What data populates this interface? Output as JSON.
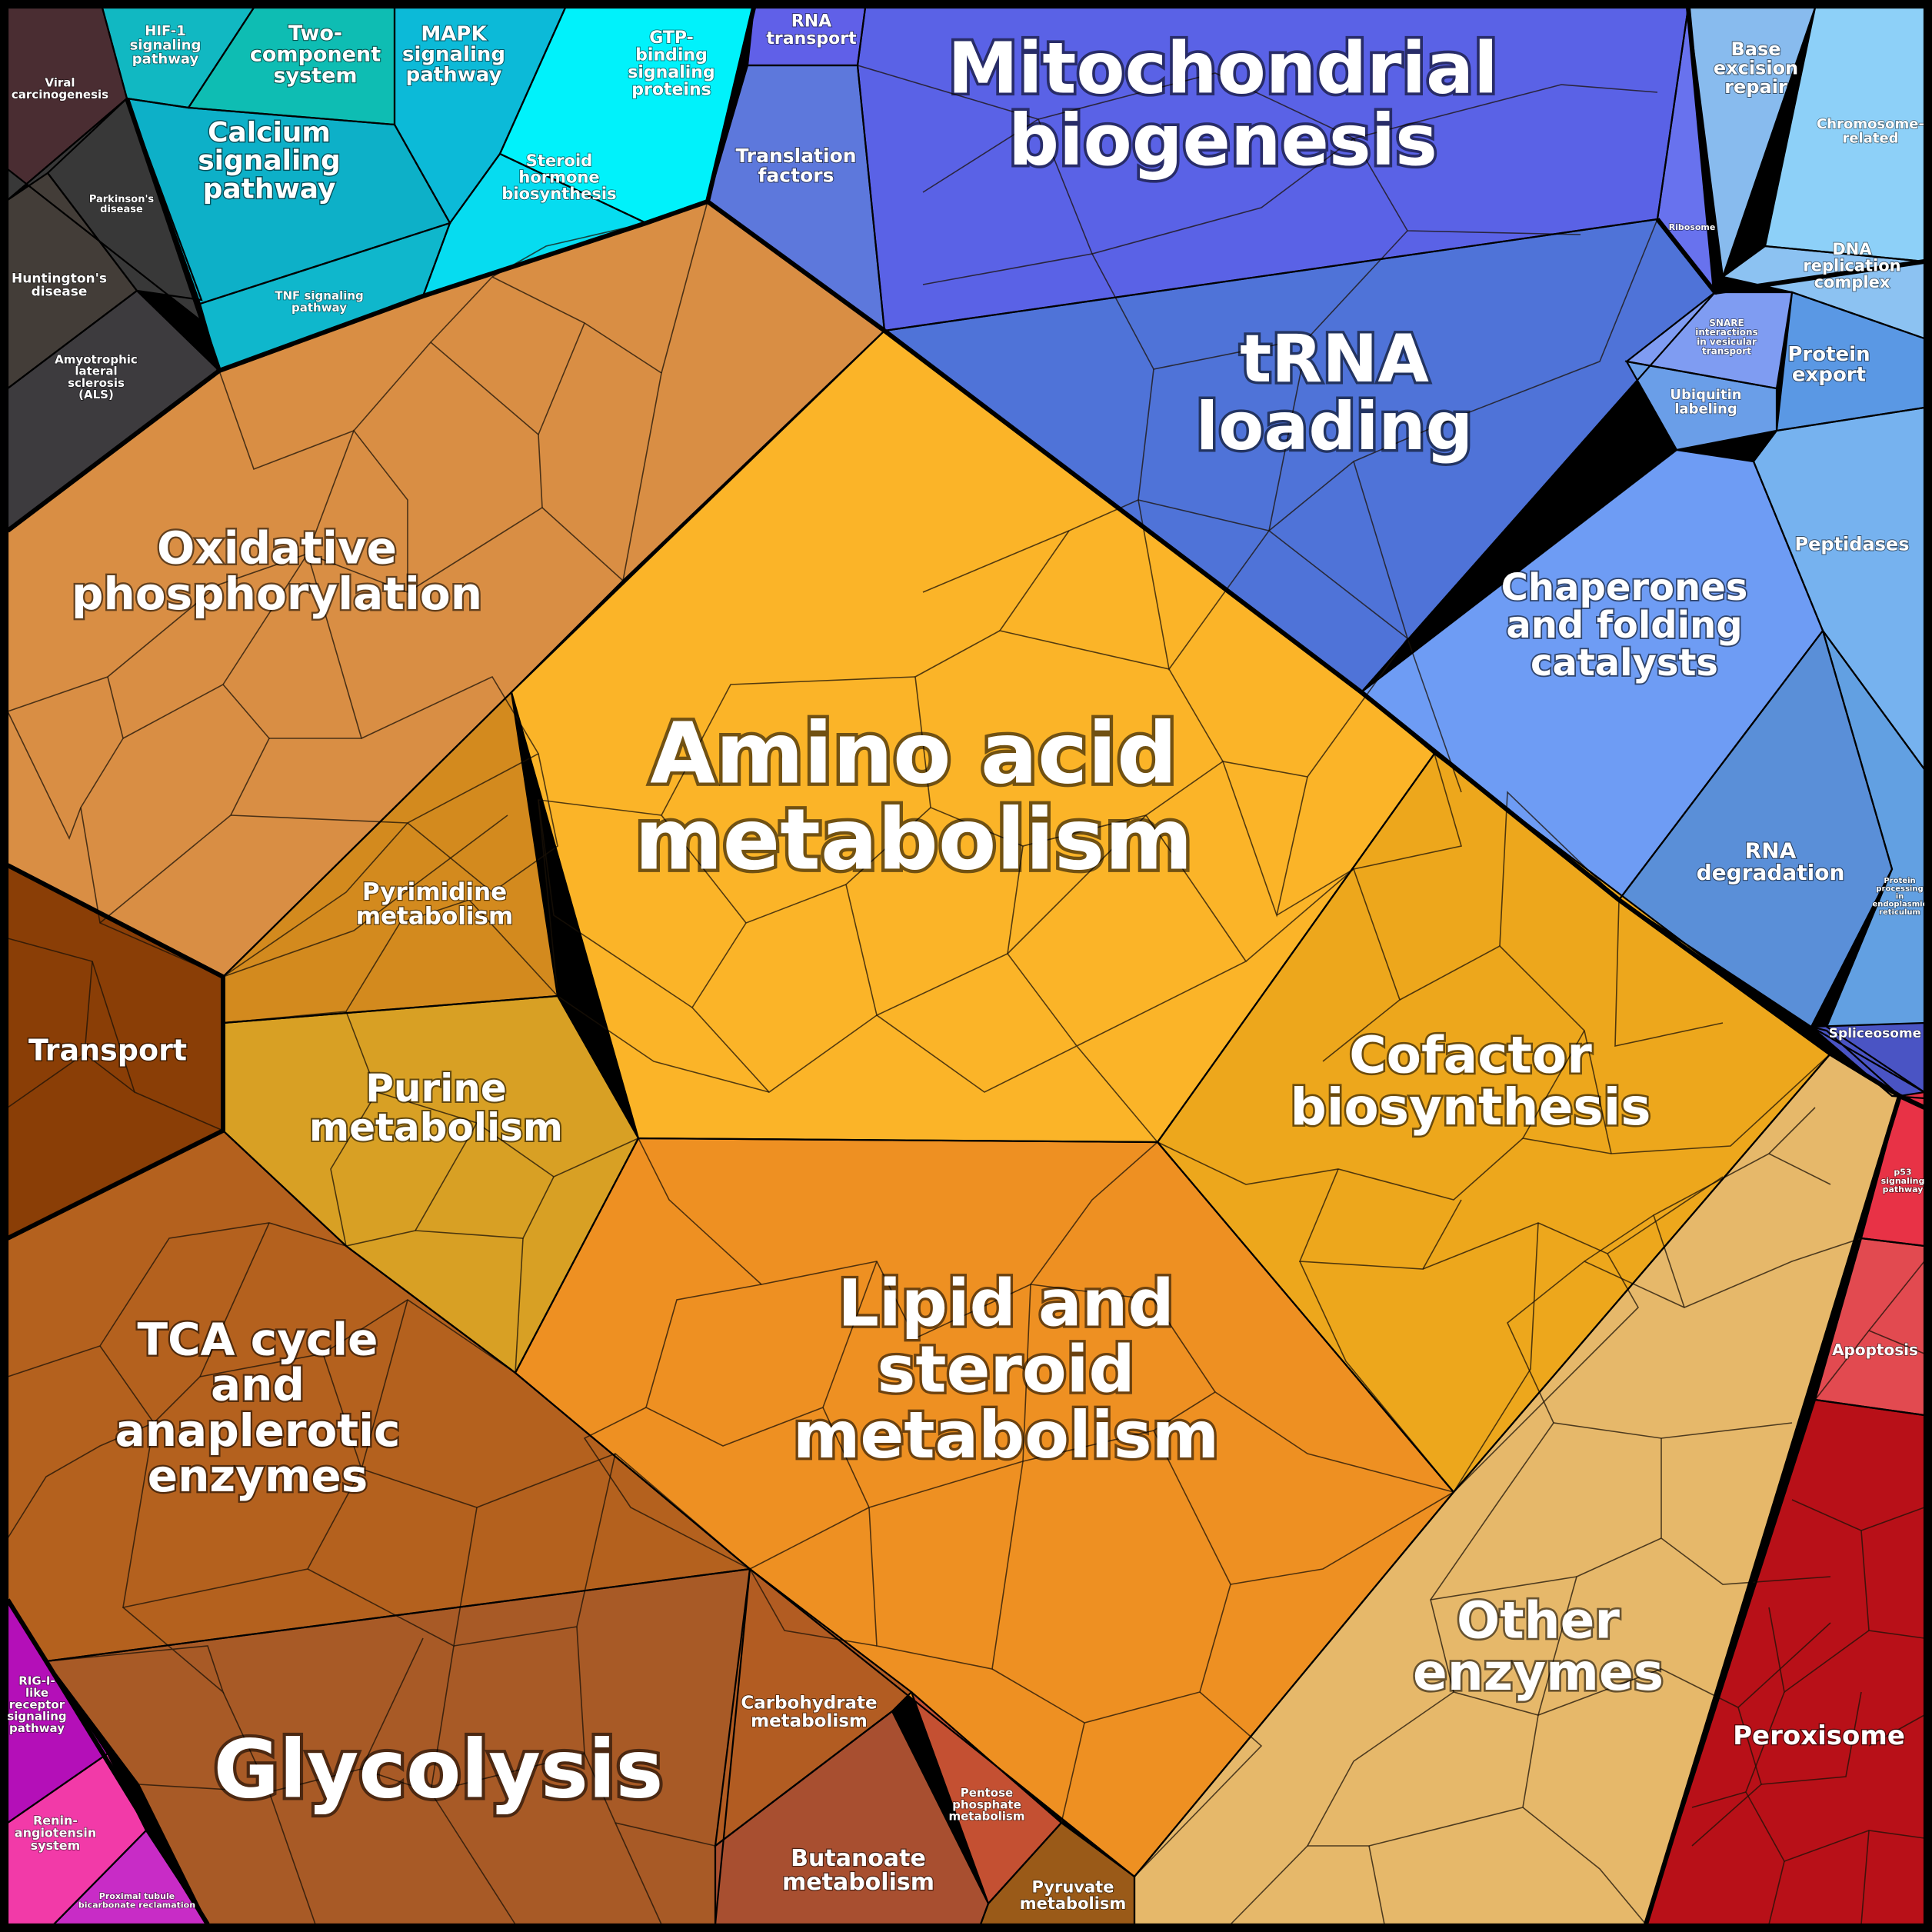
{
  "chart_data": {
    "type": "voronoi-treemap",
    "title": "",
    "categories": [
      {
        "name": "Viral carcinogenesis",
        "color": "#4a2d32"
      },
      {
        "name": "Parkinson's disease",
        "color": "#383838"
      },
      {
        "name": "Huntington's disease",
        "color": "#433d38"
      },
      {
        "name": "Amyotrophic lateral sclerosis (ALS)",
        "color": "#3d3b3e"
      },
      {
        "name": "HIF-1 signaling pathway",
        "color": "#11b8c2"
      },
      {
        "name": "Two-component system",
        "color": "#0ebdb3"
      },
      {
        "name": "MAPK signaling pathway",
        "color": "#0cbad8"
      },
      {
        "name": "Calcium signaling pathway",
        "color": "#0db0c8"
      },
      {
        "name": "TNF signaling pathway",
        "color": "#0fb7cc"
      },
      {
        "name": "GTP-binding signaling proteins",
        "color": "#00f2fb"
      },
      {
        "name": "Steroid hormone biosynthesis",
        "color": "#06dcf0"
      },
      {
        "name": "RNA transport",
        "color": "#6060e8"
      },
      {
        "name": "Translation factors",
        "color": "#5d78dc"
      },
      {
        "name": "Mitochondrial biogenesis",
        "color": "#5a62e6"
      },
      {
        "name": "Ribosome",
        "color": "#6872ee"
      },
      {
        "name": "tRNA loading",
        "color": "#4f73d8"
      },
      {
        "name": "Base excision repair",
        "color": "#88bbee"
      },
      {
        "name": "Chromosome-related",
        "color": "#8dd0f8"
      },
      {
        "name": "DNA replication complex",
        "color": "#8cc2f2"
      },
      {
        "name": "SNARE interactions in vesicular transport",
        "color": "#7f9cf2"
      },
      {
        "name": "Protein export",
        "color": "#5a98e4"
      },
      {
        "name": "Ubiquitin labeling",
        "color": "#6a9ee8"
      },
      {
        "name": "Peptidases",
        "color": "#76b2ef"
      },
      {
        "name": "Chaperones and folding catalysts",
        "color": "#6e9cf4"
      },
      {
        "name": "RNA degradation",
        "color": "#5a8fd8"
      },
      {
        "name": "Protein processing in endoplasmic reticulum",
        "color": "#62a0e2"
      },
      {
        "name": "Spliceosome",
        "color": "#4a54c4"
      },
      {
        "name": "Oxidative phosphorylation",
        "color": "#d98e44"
      },
      {
        "name": "Amino acid metabolism",
        "color": "#fbb428"
      },
      {
        "name": "Pyrimidine metabolism",
        "color": "#d38a1e"
      },
      {
        "name": "Purine metabolism",
        "color": "#d8a024"
      },
      {
        "name": "Transport",
        "color": "#8a3e06"
      },
      {
        "name": "Cofactor biosynthesis",
        "color": "#eda71c"
      },
      {
        "name": "Lipid and steroid metabolism",
        "color": "#ee9022"
      },
      {
        "name": "TCA cycle and anaplerotic enzymes",
        "color": "#b4611e"
      },
      {
        "name": "Glycolysis",
        "color": "#a85a26"
      },
      {
        "name": "Carbohydrate metabolism",
        "color": "#b25c22"
      },
      {
        "name": "Pentose phosphate metabolism",
        "color": "#c45032"
      },
      {
        "name": "Butanoate metabolism",
        "color": "#a84f30"
      },
      {
        "name": "Pyruvate metabolism",
        "color": "#9a5a18"
      },
      {
        "name": "Other enzymes",
        "color": "#e6b86a"
      },
      {
        "name": "p53 signaling pathway",
        "color": "#e83246"
      },
      {
        "name": "Apoptosis",
        "color": "#e24a50"
      },
      {
        "name": "Peroxisome",
        "color": "#b81018"
      },
      {
        "name": "RIG-I-like receptor signaling pathway",
        "color": "#b40fb8"
      },
      {
        "name": "Renin-angiotensin system",
        "color": "#f23aa8"
      },
      {
        "name": "Proximal tubule bicarbonate reclamation",
        "color": "#c82cc6"
      }
    ]
  },
  "labels": {
    "viral": "Viral\ncarcinogenesis",
    "parkinsons": "Parkinson's\ndisease",
    "huntingtons": "Huntington's\ndisease",
    "als": "Amyotrophic\nlateral\nsclerosis\n(ALS)",
    "hif1": "HIF-1\nsignaling\npathway",
    "twocomp": "Two-\ncomponent\nsystem",
    "mapk": "MAPK\nsignaling\npathway",
    "calcium": "Calcium\nsignaling\npathway",
    "tnf": "TNF signaling\npathway",
    "gtp": "GTP-\nbinding\nsignaling\nproteins",
    "steroidhormone": "Steroid\nhormone\nbiosynthesis",
    "rnatransport": "RNA\ntransport",
    "translation": "Translation\nfactors",
    "mito": "Mitochondrial\nbiogenesis",
    "ribosome": "Ribosome",
    "trna": "tRNA\nloading",
    "ber": "Base\nexcision\nrepair",
    "chromosome": "Chromosome-\nrelated",
    "dnarep": "DNA\nreplication\ncomplex",
    "snare": "SNARE\ninteractions\nin vesicular\ntransport",
    "proteinexport": "Protein\nexport",
    "ubiquitin": "Ubiquitin\nlabeling",
    "peptidases": "Peptidases",
    "chaperones": "Chaperones\nand folding\ncatalysts",
    "rnadeg": "RNA\ndegradation",
    "protproc": "Protein\nprocessing\nin\nendoplasmic\nreticulum",
    "spliceosome": "Spliceosome",
    "oxphos": "Oxidative\nphosphorylation",
    "aminoacid": "Amino acid\nmetabolism",
    "pyrimidine": "Pyrimidine\nmetabolism",
    "purine": "Purine\nmetabolism",
    "transport": "Transport",
    "cofactor": "Cofactor\nbiosynthesis",
    "lipid": "Lipid and\nsteroid\nmetabolism",
    "tca": "TCA cycle\nand\nanaplerotic\nenzymes",
    "glycolysis": "Glycolysis",
    "carbohydrate": "Carbohydrate\nmetabolism",
    "pentose": "Pentose\nphosphate\nmetabolism",
    "butanoate": "Butanoate\nmetabolism",
    "pyruvate": "Pyruvate\nmetabolism",
    "otherenz": "Other\nenzymes",
    "p53": "p53\nsignaling\npathway",
    "apoptosis": "Apoptosis",
    "peroxisome": "Peroxisome",
    "rigi": "RIG-I-\nlike\nreceptor\nsignaling\npathway",
    "renin": "Renin-\nangiotensin\nsystem",
    "proximal": "Proximal tubule\nbicarbonate reclamation"
  }
}
